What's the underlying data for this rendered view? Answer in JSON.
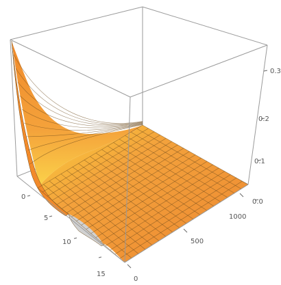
{
  "chart_data": {
    "type": "surface3d",
    "title": "",
    "x_axis": {
      "label": "",
      "range": [
        0,
        16
      ],
      "ticks": [
        "0",
        "5",
        "10",
        "15"
      ]
    },
    "y_axis": {
      "label": "",
      "range": [
        0,
        1000
      ],
      "ticks": [
        "0",
        "500",
        "1000"
      ]
    },
    "z_axis": {
      "label": "",
      "range": [
        0,
        0.35
      ],
      "ticks": [
        "0.0",
        "0.1",
        "0.2",
        "0.3"
      ]
    },
    "surface": {
      "description_points": [
        {
          "x": 0,
          "y": 0,
          "z": 0.35
        },
        {
          "x": 0,
          "y": 500,
          "z": 0.12
        },
        {
          "x": 0,
          "y": 1000,
          "z": 0.07
        },
        {
          "x": 4,
          "y": 0,
          "z": 0.02
        },
        {
          "x": 4,
          "y": 1000,
          "z": 0.05
        },
        {
          "x": 16,
          "y": 0,
          "z": 0.0
        },
        {
          "x": 16,
          "y": 1000,
          "z": 0.01
        }
      ]
    },
    "colors": {
      "low": "#f08a24",
      "high": "#fde84a",
      "mesh": "#6b4a1c",
      "box": "#9a9a9a",
      "underside": "#cfcfcf"
    }
  }
}
